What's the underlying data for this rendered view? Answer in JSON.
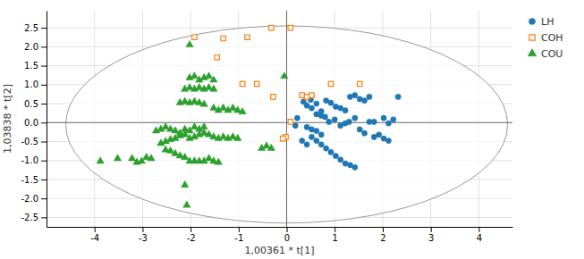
{
  "chart_data": {
    "type": "scatter",
    "xlabel": "1,00361 * t[1]",
    "ylabel": "1,03838 * t[2]",
    "xlim": [
      -5.0,
      4.7
    ],
    "ylim": [
      -2.75,
      2.95
    ],
    "xticks": [
      -4,
      -3,
      -2,
      -1,
      0,
      1,
      2,
      3,
      4
    ],
    "yticks": [
      -2.5,
      {
        "value": -2,
        "label": "-2.0"
      },
      -1.5,
      {
        "value": -1,
        "label": "-1.0"
      },
      -0.5,
      {
        "value": 0,
        "label": "0.0"
      },
      0.5,
      {
        "value": 1,
        "label": "1.0"
      },
      1.5,
      {
        "value": 2,
        "label": "2.0"
      },
      2.5
    ],
    "grid": true,
    "legend": "upper right",
    "ellipse": {
      "x": 0.0,
      "y": -0.05,
      "width": 9.2,
      "height": 5.2
    },
    "reference_lines": [
      {
        "axis": "y",
        "value": 0
      },
      {
        "axis": "x",
        "value": 0
      }
    ],
    "series": [
      {
        "name": "LH",
        "marker": "circle",
        "values": [
          [
            0.35,
            0.55
          ],
          [
            0.5,
            0.6
          ],
          [
            0.42,
            0.45
          ],
          [
            0.62,
            0.5
          ],
          [
            0.72,
            0.3
          ],
          [
            0.8,
            0.15
          ],
          [
            0.88,
            0.02
          ],
          [
            1.0,
            0.08
          ],
          [
            1.12,
            -0.08
          ],
          [
            1.22,
            -0.02
          ],
          [
            1.3,
            0.02
          ],
          [
            1.42,
            0.12
          ],
          [
            1.52,
            -0.18
          ],
          [
            1.62,
            -0.28
          ],
          [
            1.72,
            0.02
          ],
          [
            1.82,
            0.02
          ],
          [
            2.02,
            0.12
          ],
          [
            2.12,
            -0.02
          ],
          [
            2.22,
            0.08
          ],
          [
            2.32,
            0.68
          ],
          [
            0.52,
            -0.38
          ],
          [
            0.62,
            -0.48
          ],
          [
            0.72,
            -0.58
          ],
          [
            0.82,
            -0.68
          ],
          [
            0.92,
            -0.78
          ],
          [
            1.02,
            -0.88
          ],
          [
            1.12,
            -0.98
          ],
          [
            1.22,
            -1.08
          ],
          [
            1.32,
            -1.12
          ],
          [
            1.42,
            -1.18
          ],
          [
            0.32,
            -0.48
          ],
          [
            0.42,
            -0.58
          ],
          [
            0.52,
            0.38
          ],
          [
            0.62,
            0.22
          ],
          [
            0.72,
            0.18
          ],
          [
            0.82,
            0.58
          ],
          [
            0.92,
            0.52
          ],
          [
            1.02,
            0.42
          ],
          [
            1.12,
            0.38
          ],
          [
            1.22,
            0.32
          ],
          [
            1.32,
            0.68
          ],
          [
            1.42,
            0.72
          ],
          [
            1.52,
            0.62
          ],
          [
            1.62,
            0.58
          ],
          [
            1.72,
            0.68
          ],
          [
            1.82,
            -0.38
          ],
          [
            1.92,
            -0.32
          ],
          [
            2.02,
            -0.42
          ],
          [
            2.12,
            -0.48
          ],
          [
            0.42,
            -0.12
          ],
          [
            0.52,
            -0.18
          ],
          [
            0.62,
            -0.22
          ],
          [
            0.72,
            -0.32
          ],
          [
            0.22,
            0.12
          ],
          [
            0.18,
            -0.08
          ]
        ]
      },
      {
        "name": "COH",
        "marker": "square",
        "values": [
          [
            -1.92,
            2.25
          ],
          [
            -1.32,
            2.22
          ],
          [
            -0.82,
            2.25
          ],
          [
            -0.32,
            2.5
          ],
          [
            0.08,
            2.5
          ],
          [
            -1.45,
            1.72
          ],
          [
            -0.92,
            1.02
          ],
          [
            -0.62,
            1.02
          ],
          [
            -0.28,
            0.68
          ],
          [
            0.32,
            0.72
          ],
          [
            0.42,
            0.68
          ],
          [
            0.52,
            0.72
          ],
          [
            0.08,
            0.02
          ],
          [
            -0.02,
            -0.38
          ],
          [
            -0.08,
            -0.42
          ],
          [
            0.92,
            1.02
          ],
          [
            1.52,
            1.02
          ]
        ]
      },
      {
        "name": "COU",
        "marker": "triangle",
        "values": [
          [
            -3.88,
            -1.02
          ],
          [
            -3.22,
            -0.95
          ],
          [
            -3.02,
            -1.02
          ],
          [
            -2.92,
            -0.92
          ],
          [
            -2.82,
            -0.95
          ],
          [
            -3.12,
            -1.05
          ],
          [
            -3.52,
            -0.95
          ],
          [
            -2.52,
            -0.72
          ],
          [
            -2.42,
            -0.75
          ],
          [
            -2.32,
            -0.82
          ],
          [
            -2.22,
            -0.88
          ],
          [
            -2.12,
            -0.92
          ],
          [
            -2.02,
            -1.02
          ],
          [
            -1.92,
            -1.02
          ],
          [
            -1.82,
            -1.02
          ],
          [
            -1.72,
            -1.02
          ],
          [
            -1.62,
            -0.95
          ],
          [
            -1.52,
            -1.02
          ],
          [
            -1.42,
            -1.05
          ],
          [
            -2.62,
            -0.55
          ],
          [
            -2.52,
            -0.5
          ],
          [
            -2.42,
            -0.45
          ],
          [
            -2.32,
            -0.42
          ],
          [
            -2.22,
            -0.35
          ],
          [
            -2.12,
            -0.32
          ],
          [
            -2.02,
            -0.42
          ],
          [
            -1.92,
            -0.38
          ],
          [
            -1.82,
            -0.32
          ],
          [
            -1.72,
            -0.28
          ],
          [
            -1.62,
            -0.32
          ],
          [
            -2.72,
            -0.22
          ],
          [
            -2.62,
            -0.18
          ],
          [
            -2.52,
            -0.12
          ],
          [
            -2.42,
            -0.18
          ],
          [
            -2.32,
            -0.22
          ],
          [
            -2.22,
            -0.28
          ],
          [
            -2.12,
            -0.18
          ],
          [
            -2.02,
            -0.22
          ],
          [
            -1.92,
            -0.12
          ],
          [
            -1.82,
            -0.18
          ],
          [
            -1.72,
            -0.12
          ],
          [
            -2.12,
            0.88
          ],
          [
            -2.02,
            0.92
          ],
          [
            -1.92,
            0.88
          ],
          [
            -1.82,
            0.92
          ],
          [
            -1.72,
            0.88
          ],
          [
            -1.62,
            0.92
          ],
          [
            -1.52,
            0.88
          ],
          [
            -2.02,
            1.18
          ],
          [
            -1.92,
            1.22
          ],
          [
            -1.82,
            1.12
          ],
          [
            -1.72,
            1.18
          ],
          [
            -1.62,
            1.22
          ],
          [
            -1.52,
            1.12
          ],
          [
            -2.22,
            0.52
          ],
          [
            -2.12,
            0.55
          ],
          [
            -2.02,
            0.52
          ],
          [
            -1.92,
            0.55
          ],
          [
            -1.82,
            0.52
          ],
          [
            -1.72,
            0.48
          ],
          [
            -1.52,
            0.38
          ],
          [
            -1.42,
            0.32
          ],
          [
            -1.32,
            0.38
          ],
          [
            -1.22,
            0.32
          ],
          [
            -1.12,
            0.38
          ],
          [
            -1.02,
            0.32
          ],
          [
            -0.92,
            0.28
          ],
          [
            -1.52,
            -0.38
          ],
          [
            -1.42,
            -0.42
          ],
          [
            -1.32,
            -0.38
          ],
          [
            -1.22,
            -0.42
          ],
          [
            -1.12,
            -0.38
          ],
          [
            -1.02,
            -0.42
          ],
          [
            -0.52,
            -0.68
          ],
          [
            -0.42,
            -0.62
          ],
          [
            -0.32,
            -0.68
          ],
          [
            -2.02,
            2.05
          ],
          [
            -0.05,
            1.22
          ],
          [
            -2.12,
            -1.65
          ],
          [
            -2.08,
            -2.18
          ]
        ]
      }
    ]
  }
}
